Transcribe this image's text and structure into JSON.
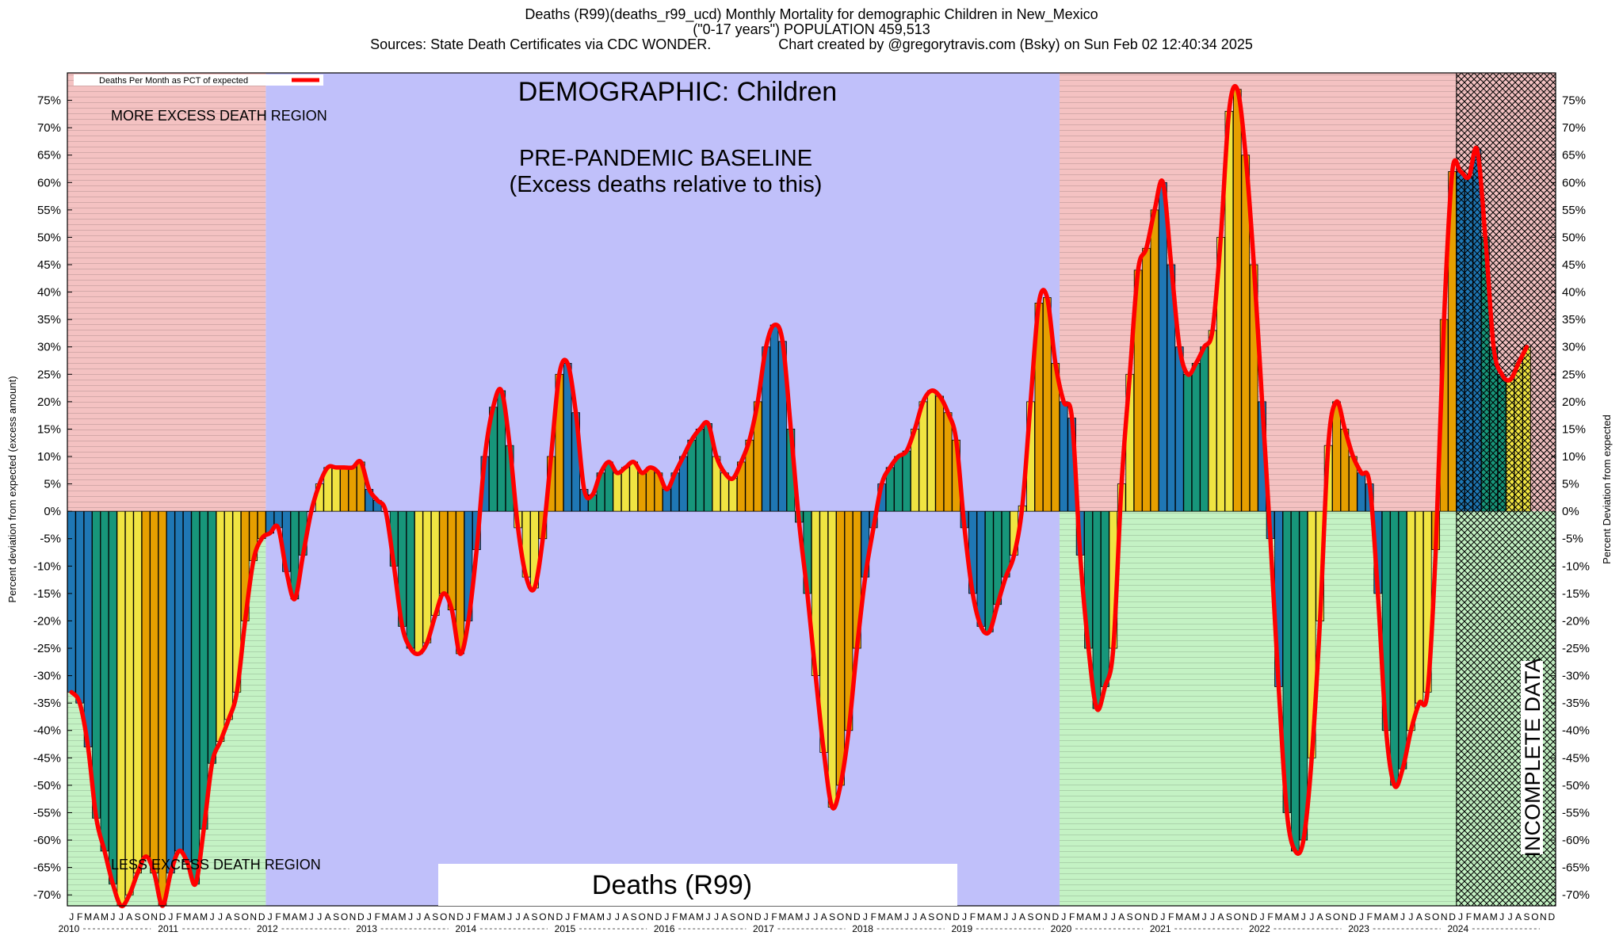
{
  "header": {
    "line1": "Deaths (R99)(deaths_r99_ucd) Monthly Mortality for demographic Children in New_Mexico",
    "line2": "(\"0-17 years\") POPULATION 459,513",
    "line3": "Sources: State Death Certificates via CDC WONDER.                 Chart created by @gregorytravis.com (Bsky) on Sun Feb 02 12:40:34 2025"
  },
  "chart_data": {
    "type": "bar",
    "title": "DEMOGRAPHIC: Children",
    "series": [
      {
        "name": "Deaths Per Month as PCT of expected"
      }
    ],
    "ylabel_left": "Percent deviation from expected (excess amount)",
    "ylabel_right": "Percent Deviation from expected",
    "ylim": [
      -72,
      80
    ],
    "yticks": [
      75,
      70,
      65,
      60,
      55,
      50,
      45,
      40,
      35,
      30,
      25,
      20,
      15,
      10,
      5,
      0,
      -5,
      -10,
      -15,
      -20,
      -25,
      -30,
      -35,
      -40,
      -45,
      -50,
      -55,
      -60,
      -65,
      -70
    ],
    "start": "2010-01",
    "month_letters": [
      "J",
      "F",
      "M",
      "A",
      "M",
      "J",
      "J",
      "A",
      "S",
      "O",
      "N",
      "D"
    ],
    "years": [
      "2010",
      "2011",
      "2012",
      "2013",
      "2014",
      "2015",
      "2016",
      "2017",
      "2018",
      "2019",
      "2020",
      "2021",
      "2022",
      "2023",
      "2024"
    ],
    "year_tick_labels": [
      "2010",
      "2011",
      "2012",
      "2013",
      "2014",
      "2015",
      "2016",
      "2017",
      "2018",
      "2019",
      "2020",
      "2021",
      "2022",
      "2023",
      "2024"
    ],
    "bar_colors": [
      "#1f77b4",
      "#17967a",
      "#f0e442",
      "#e69f00"
    ],
    "line_color": "#ff0000",
    "regions": {
      "more_excess_label": "MORE EXCESS DEATH REGION",
      "less_excess_label": "LESS EXCESS DEATH REGION",
      "baseline_label_1": "PRE-PANDEMIC BASELINE",
      "baseline_label_2": "(Excess deaths relative to this)",
      "incomplete_label": "INCOMPLETE DATA",
      "bottom_box_label": "Deaths (R99)",
      "pink": "#f4c2c2",
      "green": "#c4f2c4",
      "blue": "#c0c0fa"
    },
    "values": [
      -33,
      -35,
      -43,
      -56,
      -62,
      -68,
      -72,
      -70,
      -66,
      -63,
      -66,
      -72,
      -66,
      -62,
      -64,
      -68,
      -58,
      -46,
      -42,
      -38,
      -33,
      -20,
      -9,
      -5,
      -4,
      -3,
      -11,
      -16,
      -8,
      0,
      5,
      8,
      8,
      8,
      8,
      9,
      4,
      2,
      0,
      -10,
      -21,
      -25,
      -26,
      -24,
      -19,
      -15,
      -18,
      -26,
      -20,
      -7,
      10,
      19,
      22,
      12,
      -3,
      -12,
      -14,
      -5,
      10,
      25,
      27,
      18,
      4,
      3,
      7,
      9,
      7,
      8,
      9,
      7,
      8,
      7,
      4,
      7,
      10,
      13,
      15,
      16,
      10,
      7,
      6,
      9,
      13,
      20,
      30,
      34,
      31,
      15,
      -2,
      -15,
      -30,
      -44,
      -54,
      -50,
      -40,
      -25,
      -12,
      -3,
      5,
      8,
      10,
      11,
      15,
      20,
      22,
      21,
      18,
      13,
      -3,
      -15,
      -21,
      -22,
      -17,
      -12,
      -8,
      1,
      20,
      38,
      39,
      27,
      20,
      17,
      -8,
      -25,
      -36,
      -32,
      -25,
      5,
      25,
      44,
      48,
      55,
      60,
      45,
      30,
      25,
      27,
      30,
      33,
      50,
      73,
      77,
      65,
      45,
      20,
      -5,
      -32,
      -55,
      -62,
      -60,
      -45,
      -20,
      12,
      20,
      15,
      10,
      7,
      5,
      -15,
      -40,
      -50,
      -47,
      -40,
      -35,
      -33,
      -7,
      35,
      62,
      62,
      61,
      66,
      50,
      30,
      25,
      24,
      27,
      30
    ]
  }
}
